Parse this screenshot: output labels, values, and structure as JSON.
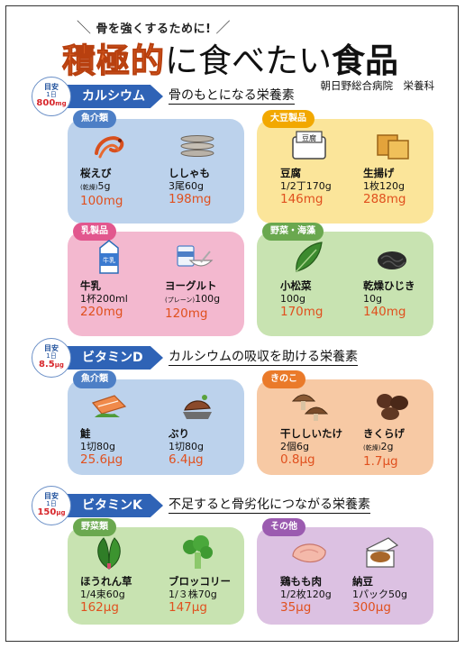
{
  "header": {
    "tagline": "骨を強くするために!",
    "title_emphasis": "積極的",
    "title_rest_a": "に食べたい",
    "title_rest_b": "食品",
    "hospital": "朝日野総合病院　栄養科"
  },
  "sections": [
    {
      "goal": {
        "label": "目安",
        "per": "1日",
        "amount": "800",
        "unit": "mg"
      },
      "nutrient": "カルシウム",
      "subtitle": "骨のもとになる栄養素",
      "groups": [
        {
          "category": "魚介類",
          "color": "blue",
          "foods": [
            {
              "icon": "shrimp-icon",
              "name": "桜えび",
              "note": "(乾燥)",
              "amount": "5g",
              "value": "100mg"
            },
            {
              "icon": "shishamo-fish-icon",
              "name": "ししゃも",
              "note": "",
              "amount": "3尾60g",
              "value": "198mg"
            }
          ]
        },
        {
          "category": "大豆製品",
          "color": "yellow",
          "foods": [
            {
              "icon": "tofu-icon",
              "name": "豆腐",
              "note": "",
              "amount": "1/2丁170g",
              "value": "146mg"
            },
            {
              "icon": "fried-tofu-icon",
              "name": "生揚げ",
              "note": "",
              "amount": "1枚120g",
              "value": "288mg"
            }
          ]
        },
        {
          "category": "乳製品",
          "color": "pink",
          "foods": [
            {
              "icon": "milk-carton-icon",
              "name": "牛乳",
              "note": "",
              "amount": "1杯200ml",
              "value": "220mg"
            },
            {
              "icon": "yogurt-icon",
              "name": "ヨーグルト",
              "note": "(プレーン)",
              "amount": "100g",
              "value": "120mg"
            }
          ]
        },
        {
          "category": "野菜・海藻",
          "color": "green",
          "foods": [
            {
              "icon": "komatsuna-icon",
              "name": "小松菜",
              "note": "",
              "amount": "100g",
              "value": "170mg"
            },
            {
              "icon": "hijiki-icon",
              "name": "乾燥ひじき",
              "note": "",
              "amount": "10g",
              "value": "140mg"
            }
          ]
        }
      ]
    },
    {
      "goal": {
        "label": "目安",
        "per": "1日",
        "amount": "8.5",
        "unit": "μg"
      },
      "nutrient": "ビタミンD",
      "subtitle": "カルシウムの吸収を助ける栄養素",
      "groups": [
        {
          "category": "魚介類",
          "color": "blue",
          "foods": [
            {
              "icon": "salmon-icon",
              "name": "鮭",
              "note": "",
              "amount": "1切80g",
              "value": "25.6μg"
            },
            {
              "icon": "yellowtail-icon",
              "name": "ぶり",
              "note": "",
              "amount": "1切80g",
              "value": "6.4μg"
            }
          ]
        },
        {
          "category": "きのこ",
          "color": "orange",
          "foods": [
            {
              "icon": "dried-shiitake-icon",
              "name": "干ししいたけ",
              "note": "",
              "amount": "2個6g",
              "value": "0.8μg"
            },
            {
              "icon": "wood-ear-icon",
              "name": "きくらげ",
              "note": "(乾燥)",
              "amount": "2g",
              "value": "1.7μg"
            }
          ]
        }
      ]
    },
    {
      "goal": {
        "label": "目安",
        "per": "1日",
        "amount": "150",
        "unit": "μg"
      },
      "nutrient": "ビタミンK",
      "subtitle": "不足すると骨劣化につながる栄養素",
      "groups": [
        {
          "category": "野菜類",
          "color": "green",
          "foods": [
            {
              "icon": "spinach-icon",
              "name": "ほうれん草",
              "note": "",
              "amount": "1/4束60g",
              "value": "162μg"
            },
            {
              "icon": "broccoli-icon",
              "name": "ブロッコリー",
              "note": "",
              "amount": "1/３株70g",
              "value": "147μg"
            }
          ]
        },
        {
          "category": "その他",
          "color": "purple",
          "foods": [
            {
              "icon": "chicken-thigh-icon",
              "name": "鶏もも肉",
              "note": "",
              "amount": "1/2枚120g",
              "value": "35μg"
            },
            {
              "icon": "natto-icon",
              "name": "納豆",
              "note": "",
              "amount": "1パック50g",
              "value": "300μg"
            }
          ]
        }
      ]
    }
  ]
}
